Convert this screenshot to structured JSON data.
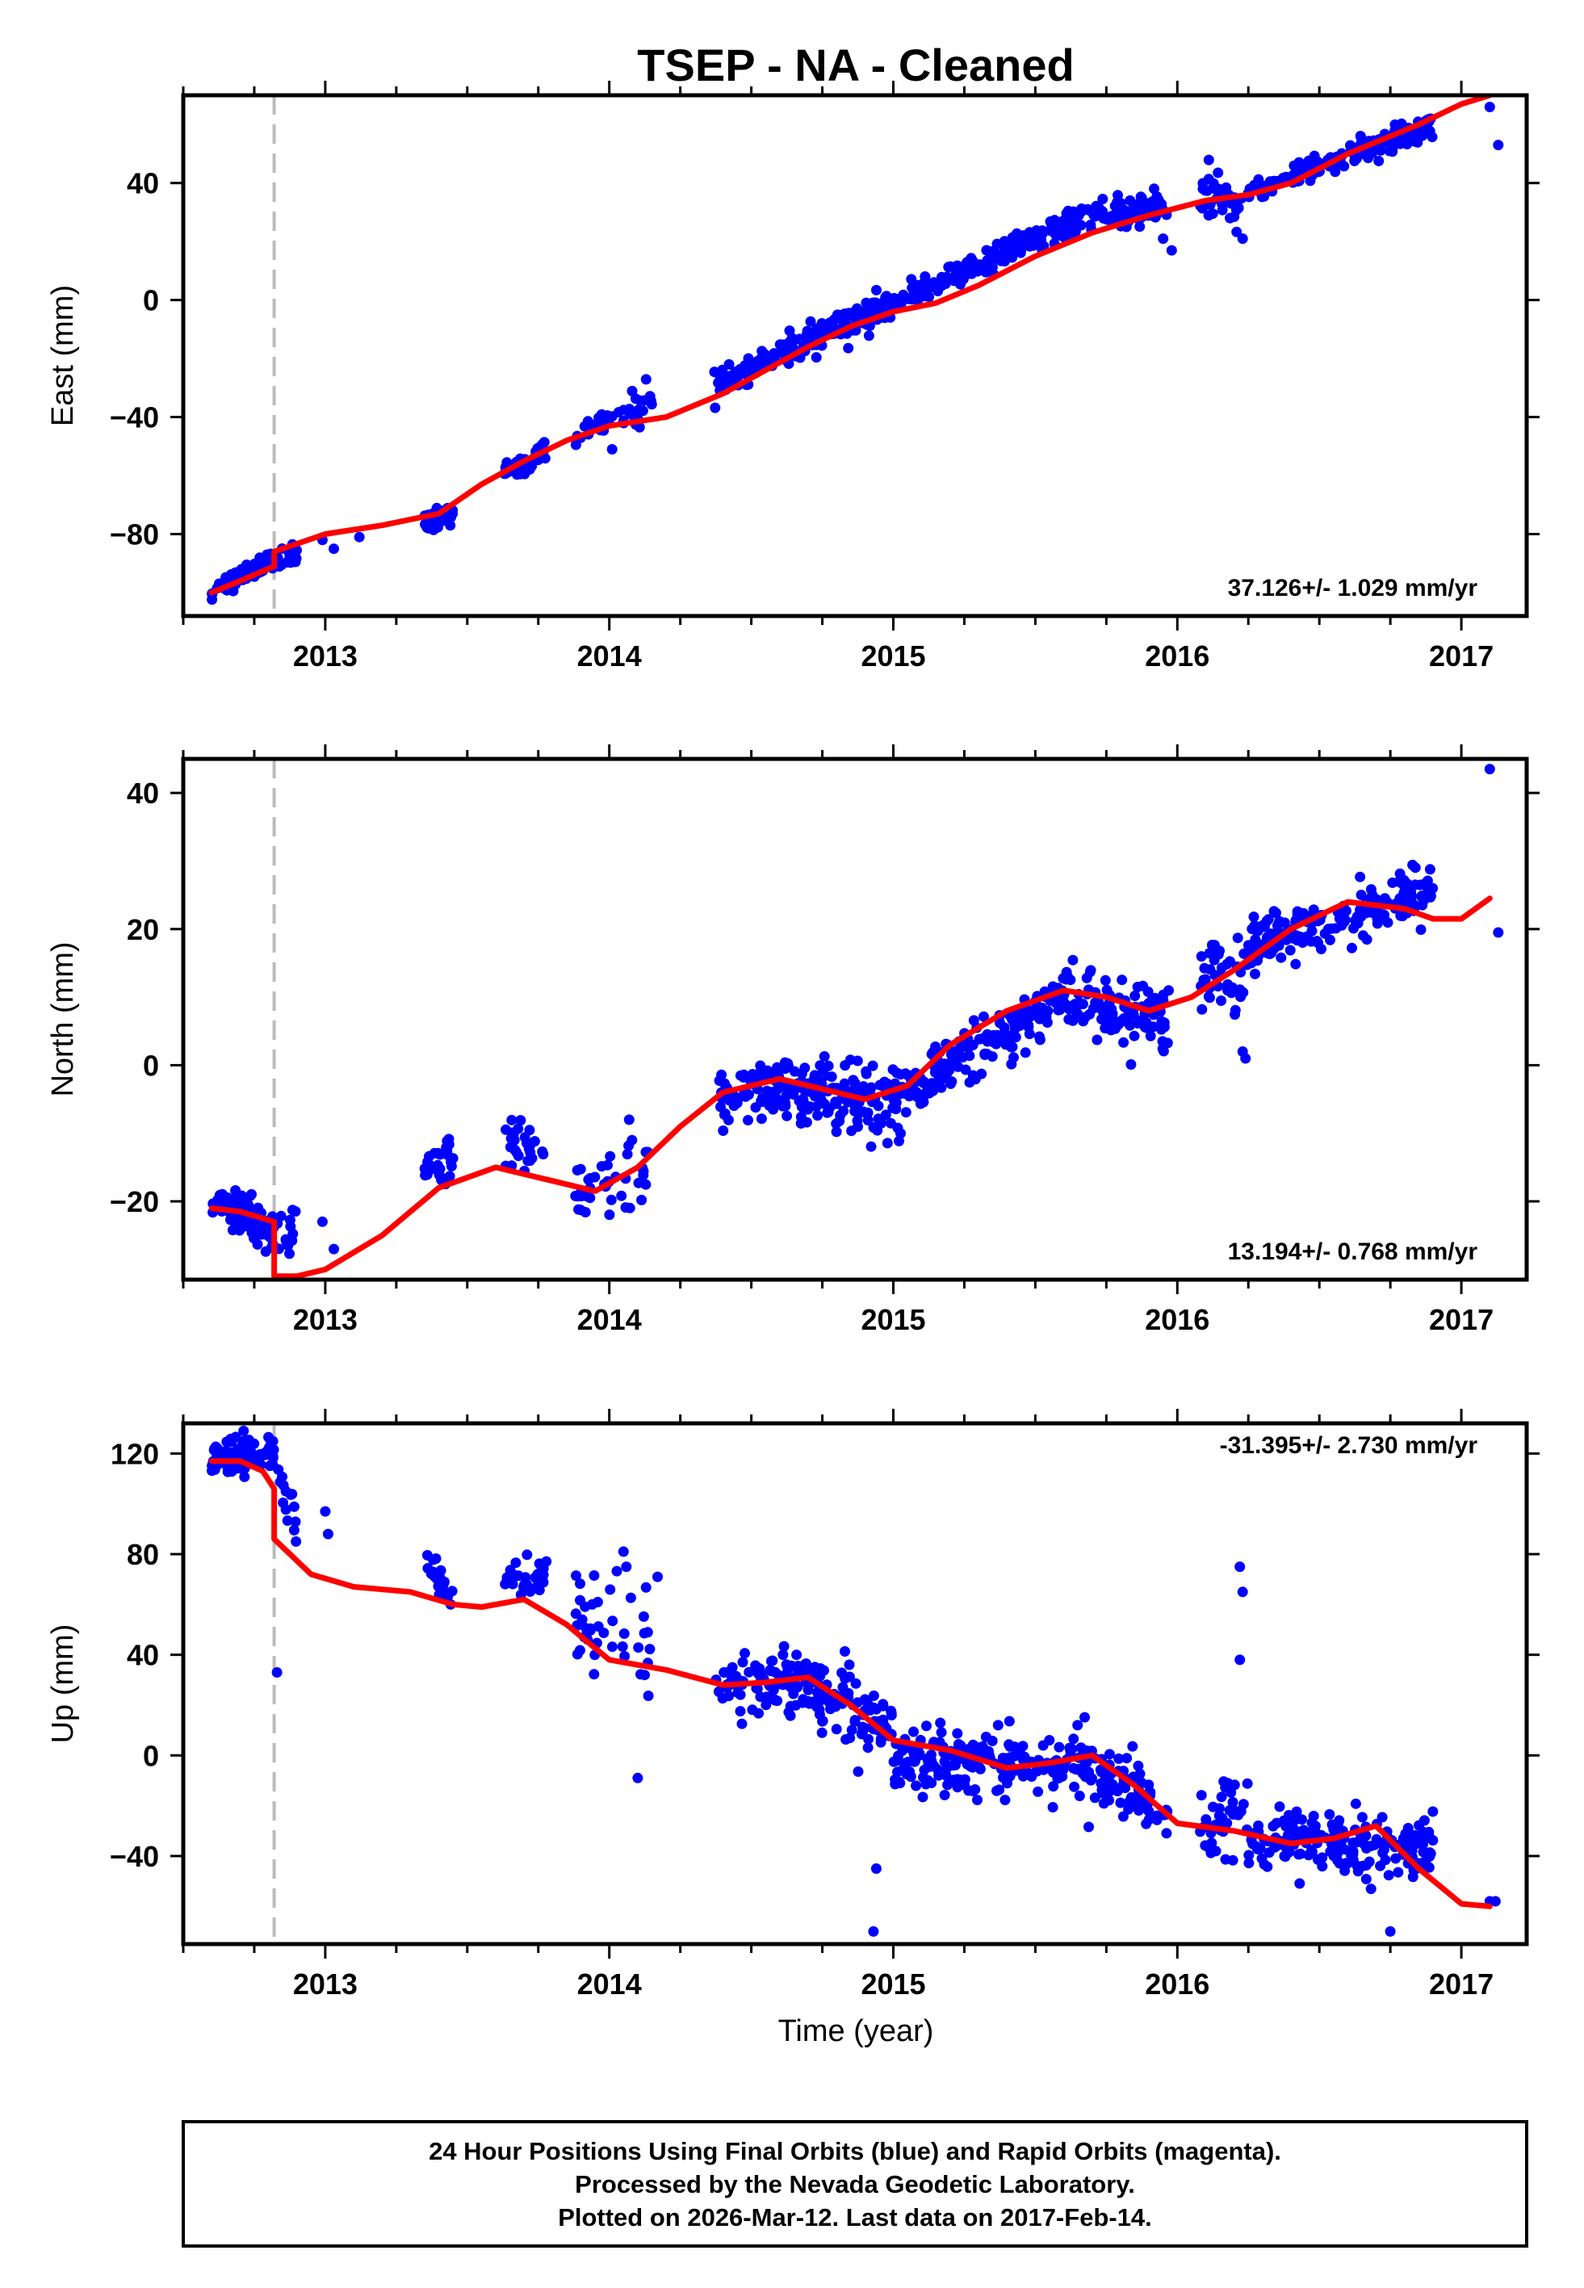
{
  "title": "TSEP  - NA - Cleaned",
  "colors": {
    "final_orbits": "#0000ff",
    "rapid_orbits": "#ff00ff",
    "model": "#ff0000",
    "offset_line": "#bbbbbb"
  },
  "xaxis": {
    "label": "Time (year)",
    "ticks": [
      "2013",
      "2014",
      "2015",
      "2016",
      "2017"
    ]
  },
  "panels": [
    {
      "ylabel": "East (mm)",
      "rate": "37.126+/- 1.029 mm/yr",
      "ticks": [
        "40",
        "0",
        "−40",
        "−80"
      ]
    },
    {
      "ylabel": "North (mm)",
      "rate": "13.194+/- 0.768 mm/yr",
      "ticks": [
        "40",
        "20",
        "0",
        "−20"
      ]
    },
    {
      "ylabel": "Up (mm)",
      "rate": "-31.395+/- 2.730 mm/yr",
      "ticks": [
        "120",
        "80",
        "40",
        "0",
        "−40"
      ]
    }
  ],
  "footer": {
    "line1": "24 Hour Positions Using Final Orbits (blue) and Rapid Orbits (magenta).",
    "line2": "Processed by the Nevada Geodetic Laboratory.",
    "line3": "Plotted on 2026-Mar-12. Last data on 2017-Feb-14."
  },
  "chart_data": [
    {
      "type": "scatter",
      "title": "TSEP  - NA - Cleaned",
      "xlabel": "Time (year)",
      "ylabel": "East (mm)",
      "xlim": [
        2012.5,
        2017.23
      ],
      "ylim": [
        -108,
        70
      ],
      "xticks": [
        2013,
        2014,
        2015,
        2016,
        2017
      ],
      "yticks": [
        40,
        0,
        -40,
        -80
      ],
      "rate": "37.126+/- 1.029 mm/yr",
      "equipment_change": 2012.82,
      "series": [
        {
          "name": "Final Orbits (blue)",
          "kind": "points",
          "segments": [
            {
              "x": [
                2012.6,
                2012.82
              ],
              "y": [
                -100,
                -88
              ],
              "sd": 1.5,
              "n": 90
            },
            {
              "x": [
                2012.83,
                2012.9
              ],
              "y": [
                -89,
                -86
              ],
              "sd": 2.5,
              "n": 14
            },
            {
              "x": [
                2013.35,
                2013.45
              ],
              "y": [
                -78,
                -72
              ],
              "sd": 2,
              "n": 30
            },
            {
              "x": [
                2013.63,
                2013.78
              ],
              "y": [
                -59,
                -52
              ],
              "sd": 2,
              "n": 30
            },
            {
              "x": [
                2013.88,
                2014.15
              ],
              "y": [
                -45,
                -35
              ],
              "sd": 3,
              "n": 40
            },
            {
              "x": [
                2014.37,
                2014.6
              ],
              "y": [
                -30,
                -18
              ],
              "sd": 2,
              "n": 60
            },
            {
              "x": [
                2014.6,
                2015.0
              ],
              "y": [
                -18,
                -2
              ],
              "sd": 2.8,
              "n": 130
            },
            {
              "x": [
                2015.0,
                2015.6
              ],
              "y": [
                -2,
                26
              ],
              "sd": 2,
              "n": 180
            },
            {
              "x": [
                2015.6,
                2015.97
              ],
              "y": [
                26,
                33
              ],
              "sd": 2.5,
              "n": 110
            },
            {
              "x": [
                2016.08,
                2016.25
              ],
              "y": [
                36,
                32
              ],
              "sd": 4,
              "n": 40
            },
            {
              "x": [
                2016.25,
                2016.9
              ],
              "y": [
                37,
                60
              ],
              "sd": 2,
              "n": 180
            }
          ],
          "extra": [
            [
              2012.99,
              -82
            ],
            [
              2013.12,
              -81
            ],
            [
              2013.03,
              -85
            ],
            [
              2014.01,
              -51
            ],
            [
              2015.98,
              17
            ],
            [
              2015.95,
              21
            ],
            [
              2016.23,
              21
            ],
            [
              2017.1,
              66
            ],
            [
              2017.13,
              53
            ]
          ]
        },
        {
          "name": "Model",
          "kind": "line",
          "x": [
            2012.6,
            2012.7,
            2012.82,
            2012.82,
            2013.0,
            2013.2,
            2013.4,
            2013.55,
            2013.7,
            2013.85,
            2014.0,
            2014.2,
            2014.4,
            2014.55,
            2014.7,
            2014.85,
            2015.0,
            2015.15,
            2015.3,
            2015.5,
            2015.7,
            2015.9,
            2016.1,
            2016.25,
            2016.4,
            2016.6,
            2016.85,
            2017.0,
            2017.1
          ],
          "y": [
            -100,
            -96,
            -91,
            -86,
            -80,
            -77,
            -73,
            -63,
            -55,
            -48,
            -43,
            -40,
            -32,
            -24,
            -16,
            -9,
            -4,
            -1,
            5,
            15,
            23,
            29,
            34,
            36,
            40,
            50,
            60,
            67,
            70
          ]
        }
      ]
    },
    {
      "type": "scatter",
      "title": "TSEP  - NA - Cleaned",
      "xlabel": "Time (year)",
      "ylabel": "North (mm)",
      "xlim": [
        2012.5,
        2017.23
      ],
      "ylim": [
        -31.5,
        45
      ],
      "xticks": [
        2013,
        2014,
        2015,
        2016,
        2017
      ],
      "yticks": [
        40,
        20,
        0,
        -20
      ],
      "rate": "13.194+/- 0.768 mm/yr",
      "equipment_change": 2012.82,
      "series": [
        {
          "name": "Final Orbits (blue)",
          "kind": "points",
          "segments": [
            {
              "x": [
                2012.6,
                2012.82
              ],
              "y": [
                -20,
                -24
              ],
              "sd": 1.5,
              "n": 90
            },
            {
              "x": [
                2012.83,
                2012.9
              ],
              "y": [
                -24,
                -25
              ],
              "sd": 3,
              "n": 14
            },
            {
              "x": [
                2013.35,
                2013.45
              ],
              "y": [
                -17,
                -14
              ],
              "sd": 2,
              "n": 30
            },
            {
              "x": [
                2013.63,
                2013.78
              ],
              "y": [
                -11,
                -15
              ],
              "sd": 2,
              "n": 30
            },
            {
              "x": [
                2013.88,
                2014.15
              ],
              "y": [
                -18,
                -16
              ],
              "sd": 3,
              "n": 40
            },
            {
              "x": [
                2014.37,
                2014.6
              ],
              "y": [
                -6,
                -3
              ],
              "sd": 2,
              "n": 60
            },
            {
              "x": [
                2014.6,
                2015.0
              ],
              "y": [
                -3,
                -6
              ],
              "sd": 2.5,
              "n": 130
            },
            {
              "x": [
                2015.0,
                2015.6
              ],
              "y": [
                -5,
                10
              ],
              "sd": 2,
              "n": 180
            },
            {
              "x": [
                2015.6,
                2015.97
              ],
              "y": [
                10,
                6
              ],
              "sd": 2.5,
              "n": 110
            },
            {
              "x": [
                2016.08,
                2016.25
              ],
              "y": [
                13,
                15
              ],
              "sd": 3,
              "n": 40
            },
            {
              "x": [
                2016.25,
                2016.9
              ],
              "y": [
                18,
                25
              ],
              "sd": 2,
              "n": 180
            }
          ],
          "extra": [
            [
              2012.99,
              -23
            ],
            [
              2013.03,
              -27
            ],
            [
              2014.07,
              -8
            ],
            [
              2014.08,
              -11
            ],
            [
              2016.23,
              2
            ],
            [
              2016.24,
              1
            ],
            [
              2017.1,
              43.5
            ],
            [
              2017.13,
              19.5
            ]
          ]
        },
        {
          "name": "Model",
          "kind": "line",
          "x": [
            2012.6,
            2012.7,
            2012.82,
            2012.82,
            2012.9,
            2013.0,
            2013.2,
            2013.4,
            2013.6,
            2013.8,
            2013.95,
            2014.1,
            2014.25,
            2014.4,
            2014.6,
            2014.8,
            2014.9,
            2015.05,
            2015.2,
            2015.4,
            2015.6,
            2015.75,
            2015.9,
            2016.05,
            2016.2,
            2016.4,
            2016.6,
            2016.8,
            2016.9,
            2017.0,
            2017.1
          ],
          "y": [
            -21,
            -21.5,
            -23,
            -31,
            -31,
            -30,
            -25,
            -18,
            -15,
            -17,
            -18.5,
            -15,
            -9,
            -4,
            -2,
            -4,
            -5,
            -3,
            3,
            8,
            11,
            10,
            8,
            10,
            14,
            20,
            24,
            23,
            21.5,
            21.5,
            24.5
          ]
        }
      ]
    },
    {
      "type": "scatter",
      "title": "TSEP  - NA - Cleaned",
      "xlabel": "Time (year)",
      "ylabel": "Up (mm)",
      "xlim": [
        2012.5,
        2017.23
      ],
      "ylim": [
        -75,
        132
      ],
      "xticks": [
        2013,
        2014,
        2015,
        2016,
        2017
      ],
      "yticks": [
        120,
        80,
        40,
        0,
        -40
      ],
      "rate": "-31.395+/- 2.730 mm/yr",
      "equipment_change": 2012.82,
      "series": [
        {
          "name": "Final Orbits (blue)",
          "kind": "points",
          "segments": [
            {
              "x": [
                2012.6,
                2012.82
              ],
              "y": [
                118,
                120
              ],
              "sd": 4,
              "n": 90
            },
            {
              "x": [
                2012.83,
                2012.9
              ],
              "y": [
                110,
                95
              ],
              "sd": 6,
              "n": 14
            },
            {
              "x": [
                2013.35,
                2013.45
              ],
              "y": [
                75,
                62
              ],
              "sd": 4,
              "n": 30
            },
            {
              "x": [
                2013.63,
                2013.78
              ],
              "y": [
                70,
                72
              ],
              "sd": 4,
              "n": 30
            },
            {
              "x": [
                2013.88,
                2014.15
              ],
              "y": [
                55,
                35
              ],
              "sd": 12,
              "n": 40
            },
            {
              "x": [
                2014.37,
                2014.6
              ],
              "y": [
                28,
                27
              ],
              "sd": 5,
              "n": 60
            },
            {
              "x": [
                2014.6,
                2015.0
              ],
              "y": [
                32,
                10
              ],
              "sd": 7,
              "n": 130
            },
            {
              "x": [
                2015.0,
                2015.6
              ],
              "y": [
                0,
                -5
              ],
              "sd": 6,
              "n": 180
            },
            {
              "x": [
                2015.6,
                2015.97
              ],
              "y": [
                0,
                -20
              ],
              "sd": 7,
              "n": 110
            },
            {
              "x": [
                2016.08,
                2016.25
              ],
              "y": [
                -30,
                -20
              ],
              "sd": 8,
              "n": 40
            },
            {
              "x": [
                2016.25,
                2016.9
              ],
              "y": [
                -35,
                -35
              ],
              "sd": 6,
              "n": 180
            }
          ],
          "extra": [
            [
              2012.83,
              33
            ],
            [
              2013.0,
              97
            ],
            [
              2013.01,
              88
            ],
            [
              2014.05,
              81
            ],
            [
              2014.06,
              75
            ],
            [
              2014.1,
              -9
            ],
            [
              2014.17,
              71
            ],
            [
              2014.93,
              -70
            ],
            [
              2014.94,
              -45
            ],
            [
              2016.22,
              75
            ],
            [
              2016.23,
              65
            ],
            [
              2016.22,
              38
            ],
            [
              2016.75,
              -70
            ],
            [
              2017.1,
              -58
            ],
            [
              2017.12,
              -58
            ]
          ]
        },
        {
          "name": "Model",
          "kind": "line",
          "x": [
            2012.6,
            2012.7,
            2012.78,
            2012.82,
            2012.82,
            2012.95,
            2013.1,
            2013.3,
            2013.45,
            2013.55,
            2013.7,
            2013.85,
            2014.0,
            2014.2,
            2014.4,
            2014.55,
            2014.7,
            2014.85,
            2015.0,
            2015.2,
            2015.4,
            2015.55,
            2015.7,
            2015.85,
            2016.0,
            2016.2,
            2016.4,
            2016.55,
            2016.7,
            2016.85,
            2017.0,
            2017.1
          ],
          "y": [
            117,
            117,
            113,
            106,
            86,
            72,
            67,
            65,
            60,
            59,
            62,
            52,
            38,
            34,
            28,
            29,
            31,
            20,
            6,
            2,
            -5,
            -3,
            0,
            -12,
            -27,
            -30,
            -35,
            -33,
            -28,
            -45,
            -59,
            -60
          ]
        }
      ]
    }
  ]
}
